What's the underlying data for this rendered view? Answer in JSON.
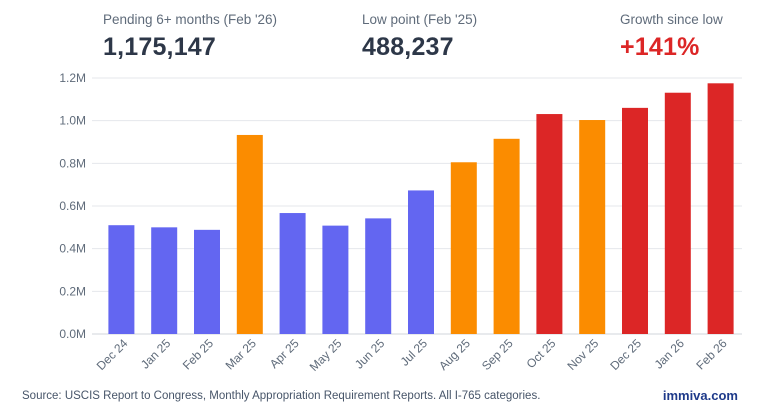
{
  "stats": [
    {
      "label": "Pending 6+ months (Feb '26)",
      "value": "1,175,147"
    },
    {
      "label": "Low point (Feb '25)",
      "value": "488,237"
    },
    {
      "label": "Growth since low",
      "value": "+141%"
    }
  ],
  "chart_data": {
    "type": "bar",
    "categories": [
      "Dec 24",
      "Jan 25",
      "Feb 25",
      "Mar 25",
      "Apr 25",
      "May 25",
      "Jun 25",
      "Jul 25",
      "Aug 25",
      "Sep 25",
      "Oct 25",
      "Nov 25",
      "Dec 25",
      "Jan 26",
      "Feb 26"
    ],
    "values": [
      510000,
      500000,
      488237,
      933000,
      567000,
      508000,
      542000,
      673000,
      805000,
      915000,
      1031000,
      1003000,
      1060000,
      1131000,
      1175147
    ],
    "bar_colors": [
      "#6366f1",
      "#6366f1",
      "#6366f1",
      "#fb8c00",
      "#6366f1",
      "#6366f1",
      "#6366f1",
      "#6366f1",
      "#fb8c00",
      "#fb8c00",
      "#dc2626",
      "#fb8c00",
      "#dc2626",
      "#dc2626",
      "#dc2626"
    ],
    "ylim": [
      0,
      1200000
    ],
    "yticks": [
      0,
      200000,
      400000,
      600000,
      800000,
      1000000,
      1200000
    ],
    "ytick_labels": [
      "0.0M",
      "0.2M",
      "0.4M",
      "0.6M",
      "0.8M",
      "1.0M",
      "1.2M"
    ],
    "grid": true,
    "xlabel": "",
    "ylabel": ""
  },
  "footer": {
    "source": "Source: USCIS Report to Congress, Monthly Appropriation Requirement Reports. All I-765 categories.",
    "brand": "immiva.com"
  },
  "colors": {
    "blue": "#6366f1",
    "orange": "#fb8c00",
    "red": "#dc2626",
    "grid": "#e5e7eb"
  }
}
